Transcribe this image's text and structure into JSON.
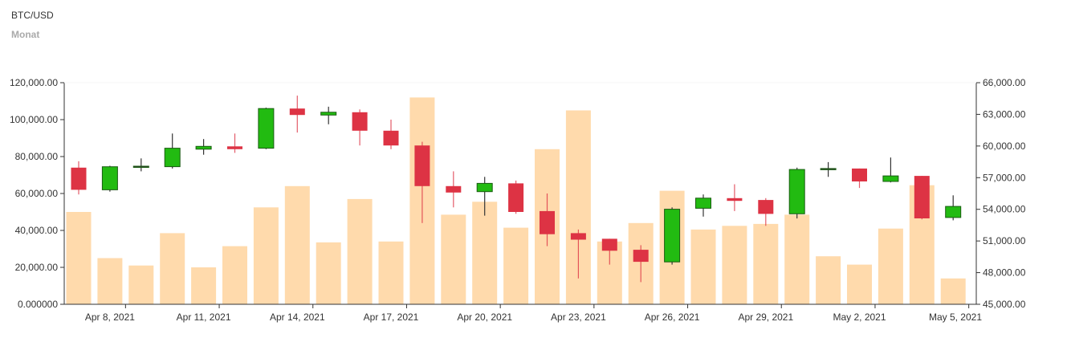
{
  "header": {
    "title": "BTC/USD",
    "subtitle": "Monat"
  },
  "chart_data": {
    "type": "candlestick",
    "title": "BTC/USD",
    "subtitle": "Monat",
    "left_axis": {
      "ylim": [
        0,
        120000
      ],
      "ticks": [
        0,
        20000,
        40000,
        60000,
        80000,
        100000,
        120000
      ],
      "tick_labels": [
        "0.000000",
        "20,000.00",
        "40,000.00",
        "60,000.00",
        "80,000.00",
        "100,000.00",
        "120,000.00"
      ]
    },
    "right_axis": {
      "ylim": [
        45000,
        66000
      ],
      "ticks": [
        45000,
        48000,
        51000,
        54000,
        57000,
        60000,
        63000,
        66000
      ],
      "tick_labels": [
        "45,000.00",
        "48,000.00",
        "51,000.00",
        "54,000.00",
        "57,000.00",
        "60,000.00",
        "63,000.00",
        "66,000.00"
      ]
    },
    "x_tick_labels": [
      "Apr 8, 2021",
      "Apr 11, 2021",
      "Apr 14, 2021",
      "Apr 17, 2021",
      "Apr 20, 2021",
      "Apr 23, 2021",
      "Apr 26, 2021",
      "Apr 29, 2021",
      "May 2, 2021",
      "May 5, 2021"
    ],
    "colors": {
      "up": "#22bb11",
      "down": "#dd3344",
      "volume": "#ffdaac",
      "axis": "#333333",
      "flat": "#333333"
    },
    "candles": [
      {
        "open": 74000,
        "high": 77500,
        "low": 59500,
        "close": 62000,
        "volume": 50000
      },
      {
        "open": 62000,
        "high": 75000,
        "low": 61000,
        "close": 74500,
        "volume": 25000
      },
      {
        "open": 74500,
        "high": 79000,
        "low": 72000,
        "close": 74800,
        "volume": 21000
      },
      {
        "open": 74500,
        "high": 92500,
        "low": 73500,
        "close": 84500,
        "volume": 38500
      },
      {
        "open": 84000,
        "high": 89500,
        "low": 81000,
        "close": 85500,
        "volume": 20000
      },
      {
        "open": 85500,
        "high": 92500,
        "low": 82000,
        "close": 84000,
        "volume": 31500
      },
      {
        "open": 84500,
        "high": 106500,
        "low": 84000,
        "close": 106000,
        "volume": 52500
      },
      {
        "open": 106000,
        "high": 113000,
        "low": 93000,
        "close": 102500,
        "volume": 64000
      },
      {
        "open": 102500,
        "high": 107000,
        "low": 97500,
        "close": 104000,
        "volume": 33500
      },
      {
        "open": 104000,
        "high": 105500,
        "low": 86000,
        "close": 94000,
        "volume": 57000
      },
      {
        "open": 94000,
        "high": 100000,
        "low": 84000,
        "close": 86000,
        "volume": 34000
      },
      {
        "open": 86000,
        "high": 88000,
        "low": 44000,
        "close": 64000,
        "volume": 112000
      },
      {
        "open": 64000,
        "high": 72000,
        "low": 52500,
        "close": 60500,
        "volume": 48500
      },
      {
        "open": 61000,
        "high": 69000,
        "low": 48000,
        "close": 65500,
        "volume": 55500
      },
      {
        "open": 65500,
        "high": 67000,
        "low": 49000,
        "close": 50000,
        "volume": 41500
      },
      {
        "open": 50500,
        "high": 60000,
        "low": 31500,
        "close": 38000,
        "volume": 84000
      },
      {
        "open": 38500,
        "high": 40500,
        "low": 14000,
        "close": 35000,
        "volume": 105000
      },
      {
        "open": 35500,
        "high": 35500,
        "low": 21500,
        "close": 29000,
        "volume": 34000
      },
      {
        "open": 29500,
        "high": 32000,
        "low": 12000,
        "close": 23000,
        "volume": 44000
      },
      {
        "open": 23000,
        "high": 52500,
        "low": 21500,
        "close": 51500,
        "volume": 61500
      },
      {
        "open": 52000,
        "high": 59500,
        "low": 47500,
        "close": 57500,
        "volume": 40500
      },
      {
        "open": 57500,
        "high": 65000,
        "low": 50500,
        "close": 56000,
        "volume": 42500
      },
      {
        "open": 56500,
        "high": 57500,
        "low": 42500,
        "close": 49000,
        "volume": 43500
      },
      {
        "open": 49000,
        "high": 74000,
        "low": 46500,
        "close": 73000,
        "volume": 48500
      },
      {
        "open": 73000,
        "high": 77000,
        "low": 69000,
        "close": 73500,
        "volume": 26000
      },
      {
        "open": 73500,
        "high": 73500,
        "low": 63000,
        "close": 66500,
        "volume": 21500
      },
      {
        "open": 66500,
        "high": 79500,
        "low": 66000,
        "close": 69500,
        "volume": 41000
      },
      {
        "open": 69500,
        "high": 69500,
        "low": 46000,
        "close": 46500,
        "volume": 64500
      },
      {
        "open": 47000,
        "high": 59000,
        "low": 45500,
        "close": 53000,
        "volume": 14000
      }
    ]
  }
}
